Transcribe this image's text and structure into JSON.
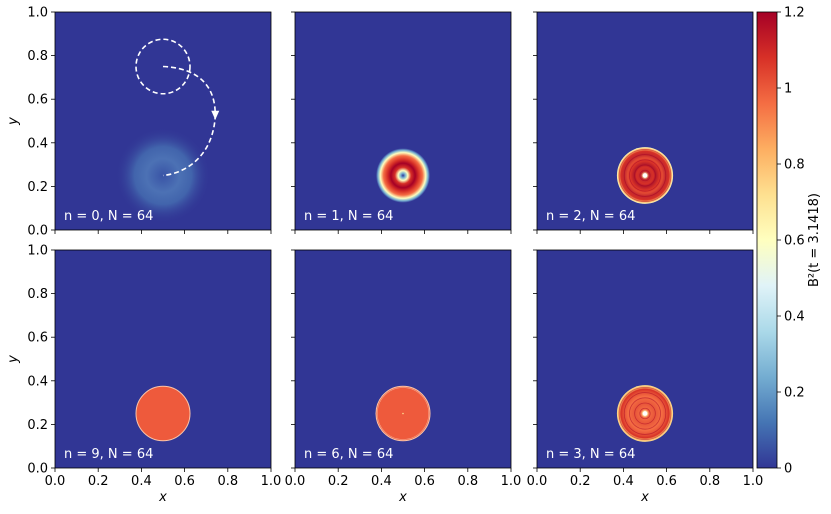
{
  "colors": {
    "background": "#313695",
    "cmap": [
      "#313695",
      "#4575b4",
      "#74add1",
      "#abd9e9",
      "#e0f3f8",
      "#ffffbf",
      "#fee090",
      "#fdae61",
      "#f46d43",
      "#d73027",
      "#a50026"
    ],
    "annotation": "#ffffff"
  },
  "chart_data": {
    "type": "heatmap",
    "layout": "2x3 grid of panels sharing a colorbar",
    "xlim": [
      0,
      1
    ],
    "ylim": [
      0,
      1
    ],
    "x_ticks": [
      "0.0",
      "0.2",
      "0.4",
      "0.6",
      "0.8",
      "1.0"
    ],
    "y_ticks": [
      "0.0",
      "0.2",
      "0.4",
      "0.6",
      "0.8",
      "1.0"
    ],
    "xlabel": "x",
    "ylabel": "y",
    "colorbar": {
      "label": "B²(t = 3.1418)",
      "range": [
        0,
        1.2
      ],
      "ticks": [
        "0",
        "0.2",
        "0.4",
        "0.6",
        "0.8",
        "1",
        "1.2"
      ],
      "colormap": "RdYlBu_r"
    },
    "panels": [
      {
        "label": "n = 0, N = 64",
        "n": 0,
        "N": 64,
        "row": 0,
        "col": 0,
        "kind": "diffuse",
        "center": [
          0.5,
          0.25
        ],
        "peak": 0.16
      },
      {
        "label": "n = 1, N = 64",
        "n": 1,
        "N": 64,
        "row": 0,
        "col": 1,
        "kind": "ring",
        "center": [
          0.5,
          0.25
        ],
        "peak": 1.15
      },
      {
        "label": "n = 2, N = 64",
        "n": 2,
        "N": 64,
        "row": 0,
        "col": 2,
        "kind": "oscillating",
        "center": [
          0.5,
          0.25
        ],
        "peak": 1.12
      },
      {
        "label": "n = 9, N = 64",
        "n": 9,
        "N": 64,
        "row": 1,
        "col": 0,
        "kind": "disk",
        "center": [
          0.5,
          0.25
        ],
        "peak": 1.0
      },
      {
        "label": "n = 6, N = 64",
        "n": 6,
        "N": 64,
        "row": 1,
        "col": 1,
        "kind": "disk",
        "center": [
          0.5,
          0.25
        ],
        "peak": 1.0
      },
      {
        "label": "n = 3, N = 64",
        "n": 3,
        "N": 64,
        "row": 1,
        "col": 2,
        "kind": "oscillating",
        "center": [
          0.5,
          0.25
        ],
        "peak": 1.05
      }
    ],
    "annotation": {
      "panel": 0,
      "description": "dashed white circle centred at (0.5, 0.75) and dashed arrow path from (0.5, 0.75) sweeping to (0.5, 0.25)"
    }
  }
}
